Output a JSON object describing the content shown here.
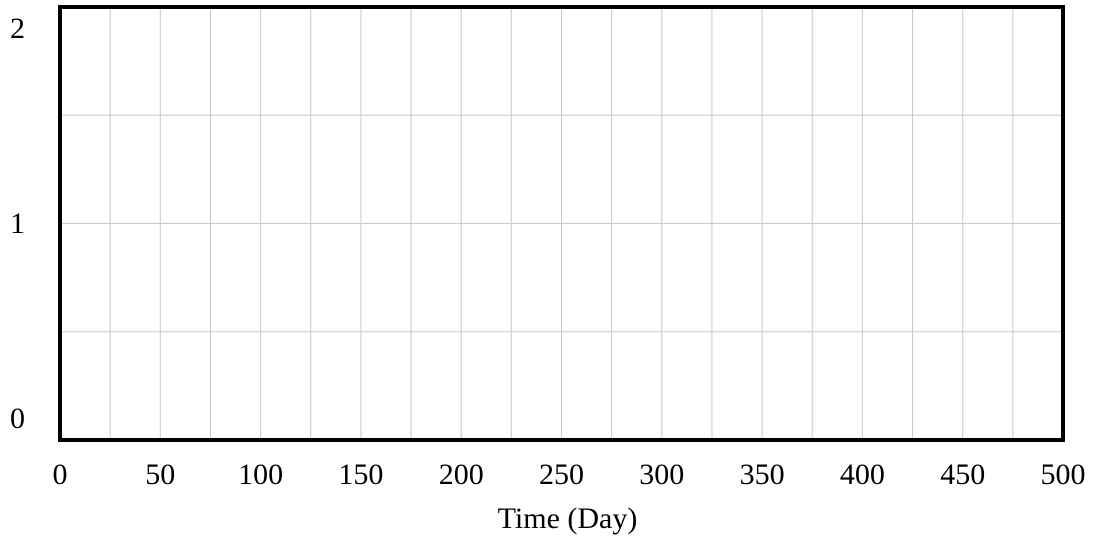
{
  "chart_data": {
    "type": "line",
    "title": "",
    "xlabel": "Time (Day)",
    "ylabel": "",
    "xlim": [
      0,
      500
    ],
    "ylim": [
      0,
      2
    ],
    "x_ticks": [
      0,
      50,
      100,
      150,
      200,
      250,
      300,
      350,
      400,
      450,
      500
    ],
    "x_tick_labels": [
      "0",
      "50",
      "100",
      "150",
      "200",
      "250",
      "300",
      "350",
      "400",
      "450",
      "500"
    ],
    "x_minor_step": 25,
    "y_ticks": [
      0,
      1,
      2
    ],
    "y_tick_labels": [
      "0",
      "1",
      "2"
    ],
    "y_minor_step": 0.5,
    "grid": true,
    "series": [],
    "colors": {
      "grid": "#c8c8c8",
      "frame": "#000000",
      "background": "#ffffff"
    }
  }
}
